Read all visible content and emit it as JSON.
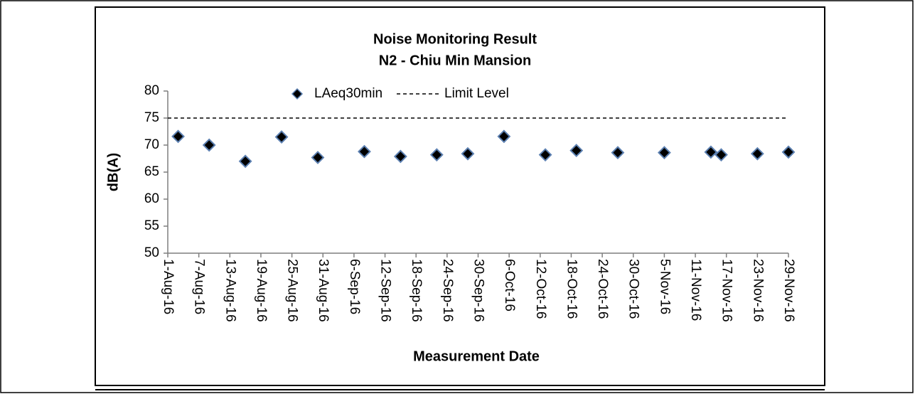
{
  "chart_data": {
    "type": "scatter",
    "title": "Noise Monitoring Result",
    "subtitle": "N2 - Chiu Min Mansion",
    "x_label": "Measurement Date",
    "y_label": "dB(A)",
    "xlim": [
      "2016-08-01",
      "2016-11-29"
    ],
    "xticks": [
      {
        "value": "2016-08-01",
        "label": "1-Aug-16"
      },
      {
        "value": "2016-08-07",
        "label": "7-Aug-16"
      },
      {
        "value": "2016-08-13",
        "label": "13-Aug-16"
      },
      {
        "value": "2016-08-19",
        "label": "19-Aug-16"
      },
      {
        "value": "2016-08-25",
        "label": "25-Aug-16"
      },
      {
        "value": "2016-08-31",
        "label": "31-Aug-16"
      },
      {
        "value": "2016-09-06",
        "label": "6-Sep-16"
      },
      {
        "value": "2016-09-12",
        "label": "12-Sep-16"
      },
      {
        "value": "2016-09-18",
        "label": "18-Sep-16"
      },
      {
        "value": "2016-09-24",
        "label": "24-Sep-16"
      },
      {
        "value": "2016-09-30",
        "label": "30-Sep-16"
      },
      {
        "value": "2016-10-06",
        "label": "6-Oct-16"
      },
      {
        "value": "2016-10-12",
        "label": "12-Oct-16"
      },
      {
        "value": "2016-10-18",
        "label": "18-Oct-16"
      },
      {
        "value": "2016-10-24",
        "label": "24-Oct-16"
      },
      {
        "value": "2016-10-30",
        "label": "30-Oct-16"
      },
      {
        "value": "2016-11-05",
        "label": "5-Nov-16"
      },
      {
        "value": "2016-11-11",
        "label": "11-Nov-16"
      },
      {
        "value": "2016-11-17",
        "label": "17-Nov-16"
      },
      {
        "value": "2016-11-23",
        "label": "23-Nov-16"
      },
      {
        "value": "2016-11-29",
        "label": "29-Nov-16"
      }
    ],
    "ylim": [
      50,
      80
    ],
    "yticks": [
      50,
      55,
      60,
      65,
      70,
      75,
      80
    ],
    "series": [
      {
        "name": "LAeq30min",
        "color": "#000000",
        "edge_color": "#5b7fb0",
        "marker": "diamond",
        "x": [
          "2016-08-03",
          "2016-08-09",
          "2016-08-16",
          "2016-08-23",
          "2016-08-30",
          "2016-09-08",
          "2016-09-15",
          "2016-09-22",
          "2016-09-28",
          "2016-10-05",
          "2016-10-13",
          "2016-10-19",
          "2016-10-27",
          "2016-11-05",
          "2016-11-14",
          "2016-11-16",
          "2016-11-23",
          "2016-11-29"
        ],
        "values": [
          71.6,
          70.0,
          67.0,
          71.5,
          67.7,
          68.8,
          67.9,
          68.2,
          68.4,
          71.6,
          68.2,
          69.0,
          68.6,
          68.6,
          68.7,
          68.2,
          68.4,
          68.7
        ]
      },
      {
        "name": "Limit Level",
        "color": "#000000",
        "marker": "dashed-line",
        "x": [
          "2016-08-01",
          "2016-11-29"
        ],
        "values": [
          75,
          75
        ]
      }
    ]
  }
}
